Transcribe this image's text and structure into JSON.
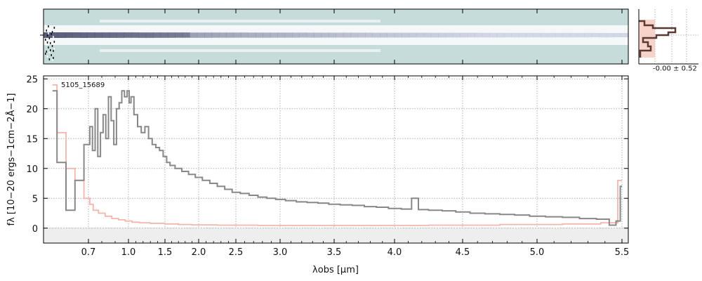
{
  "chart_data": [
    {
      "type": "heatmap",
      "description": "2D spectrum image",
      "colors": {
        "background": "#c5dcdb",
        "trace_dark": "#2a2a4a",
        "trace_mid": "#8fa0b0"
      }
    },
    {
      "type": "area",
      "description": "profile histogram",
      "annotation": "-0.00 ± 0.52",
      "colors": {
        "fill": "#f5c8bd",
        "line": "#5a3a34"
      }
    },
    {
      "type": "line",
      "object_id": "5105_15689",
      "xlabel": "λobs [μm]",
      "ylabel": "fλ [10−20 ergs−1cm−2Å−1]",
      "ylim": [
        -2.5,
        25.5
      ],
      "x_ticks": [
        "0.7",
        "1.0",
        "1.5",
        "2.0",
        "2.5",
        "3.0",
        "3.5",
        "4.0",
        "4.5",
        "5.0",
        "5.5"
      ],
      "y_ticks": [
        "0",
        "5",
        "10",
        "15",
        "20",
        "25"
      ],
      "grid": true,
      "series": [
        {
          "color": "#888888",
          "x": [
            0.62,
            0.64,
            0.66,
            0.68,
            0.7,
            0.72,
            0.74,
            0.76,
            0.78,
            0.8,
            0.82,
            0.84,
            0.86,
            0.88,
            0.9,
            0.92,
            0.94,
            0.96,
            0.98,
            1.0,
            1.02,
            1.05,
            1.1,
            1.15,
            1.2,
            1.25,
            1.3,
            1.35,
            1.4,
            1.45,
            1.5,
            1.55,
            1.6,
            1.7,
            1.8,
            1.9,
            2.0,
            2.1,
            2.2,
            2.3,
            2.4,
            2.5,
            2.6,
            2.7,
            2.8,
            2.9,
            3.0,
            3.1,
            3.2,
            3.3,
            3.4,
            3.5,
            3.6,
            3.7,
            3.8,
            3.9,
            4.0,
            4.1,
            4.15,
            4.2,
            4.3,
            4.4,
            4.5,
            4.6,
            4.7,
            4.8,
            4.9,
            5.0,
            5.1,
            5.2,
            5.3,
            5.4,
            5.45,
            5.48,
            5.5
          ],
          "y": [
            23,
            11,
            3,
            8,
            14,
            17,
            13,
            20,
            12,
            16,
            19,
            15,
            22,
            18,
            14,
            20,
            21,
            23,
            22,
            23,
            21,
            22,
            19,
            17,
            16,
            17,
            15,
            14,
            13.5,
            13,
            12,
            11,
            10.5,
            10,
            9.5,
            9,
            8.5,
            8,
            7.5,
            7,
            6.5,
            6,
            5.8,
            5.5,
            5.2,
            5,
            4.8,
            4.6,
            4.4,
            4.3,
            4.2,
            4,
            3.9,
            3.8,
            3.6,
            3.5,
            3.3,
            3.2,
            5,
            3.1,
            3,
            2.9,
            2.7,
            2.5,
            2.4,
            2.3,
            2.2,
            2,
            1.9,
            1.8,
            1.6,
            1.5,
            0.5,
            1.2,
            7
          ]
        },
        {
          "color": "#f4b5ad",
          "x": [
            0.62,
            0.64,
            0.66,
            0.68,
            0.7,
            0.72,
            0.75,
            0.8,
            0.85,
            0.9,
            0.95,
            1.0,
            1.1,
            1.2,
            1.4,
            1.6,
            1.8,
            2.0,
            2.5,
            3.0,
            3.5,
            4.0,
            4.5,
            5.0,
            5.3,
            5.45,
            5.5
          ],
          "y": [
            24,
            16,
            10,
            8,
            5,
            4,
            3,
            2.5,
            2,
            1.6,
            1.4,
            1.2,
            1.0,
            0.9,
            0.8,
            0.7,
            0.6,
            0.55,
            0.5,
            0.45,
            0.45,
            0.45,
            0.5,
            0.6,
            0.7,
            0.9,
            8
          ]
        }
      ]
    }
  ]
}
